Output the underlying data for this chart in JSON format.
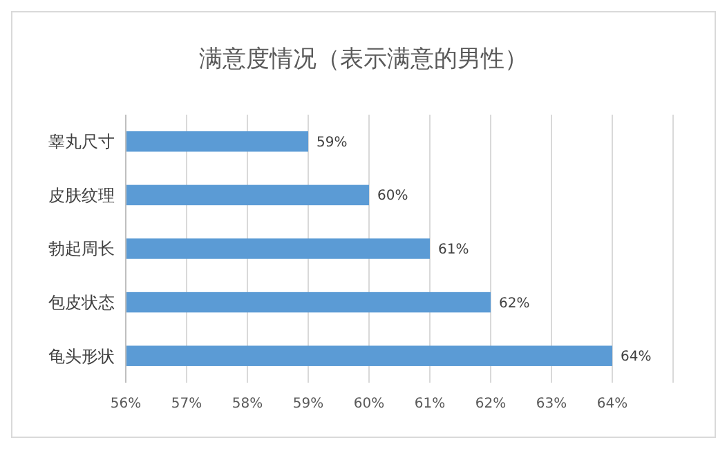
{
  "chart_data": {
    "type": "bar",
    "orientation": "horizontal",
    "title": "满意度情况（表示满意的男性）",
    "categories": [
      "睾丸尺寸",
      "皮肤纹理",
      "勃起周长",
      "包皮状态",
      "龟头形状"
    ],
    "values": [
      59,
      60,
      61,
      62,
      64
    ],
    "value_labels": [
      "59%",
      "60%",
      "61%",
      "62%",
      "64%"
    ],
    "color": "#5b9bd5",
    "xlim": [
      56,
      65
    ],
    "xticks": [
      {
        "value": 56,
        "label": "56%"
      },
      {
        "value": 57,
        "label": "57%"
      },
      {
        "value": 58,
        "label": "58%"
      },
      {
        "value": 59,
        "label": "59%"
      },
      {
        "value": 60,
        "label": "60%"
      },
      {
        "value": 61,
        "label": "61%"
      },
      {
        "value": 62,
        "label": "62%"
      },
      {
        "value": 63,
        "label": "63%"
      },
      {
        "value": 64,
        "label": "64%"
      },
      {
        "value": 65,
        "label": null
      }
    ],
    "grid": "x"
  }
}
